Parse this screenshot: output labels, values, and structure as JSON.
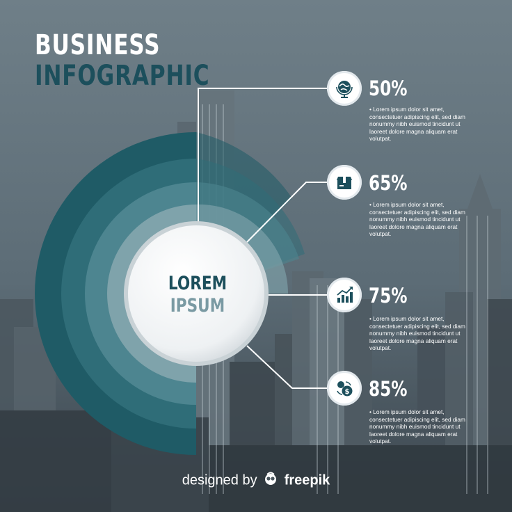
{
  "title": {
    "line1": "BUSINESS",
    "line2": "INFOGRAPHIC"
  },
  "center": {
    "line1": "LOREM",
    "line2": "IPSUM"
  },
  "items": [
    {
      "percent": "50%",
      "icon": "globe-icon",
      "text": "• Lorem ipsum dolor sit amet, consectetuer adipiscing elit, sed diam nonummy nibh euismod tincidunt ut laoreet dolore magna aliquam erat volutpat."
    },
    {
      "percent": "65%",
      "icon": "box-icon",
      "text": "• Lorem ipsum dolor sit amet, consectetuer adipiscing elit, sed diam nonummy nibh euismod tincidunt ut laoreet dolore magna aliquam erat volutpat."
    },
    {
      "percent": "75%",
      "icon": "bar-chart-icon",
      "text": "• Lorem ipsum dolor sit amet, consectetuer adipiscing elit, sed diam nonummy nibh euismod tincidunt ut laoreet dolore magna aliquam erat volutpat."
    },
    {
      "percent": "85%",
      "icon": "money-exchange-icon",
      "text": "• Lorem ipsum dolor sit amet, consectetuer adipiscing elit, sed diam nonummy nibh euismod tincidunt ut laoreet dolore magna aliquam erat volutpat."
    }
  ],
  "footer": {
    "prefix": "designed by",
    "brand": "freepik"
  },
  "colors": {
    "dark_teal": "#1c4f5c",
    "ring1": "#1f5b66",
    "ring2": "#2f6d78",
    "ring3": "#4d8590",
    "ring4": "#7fa3ab"
  }
}
